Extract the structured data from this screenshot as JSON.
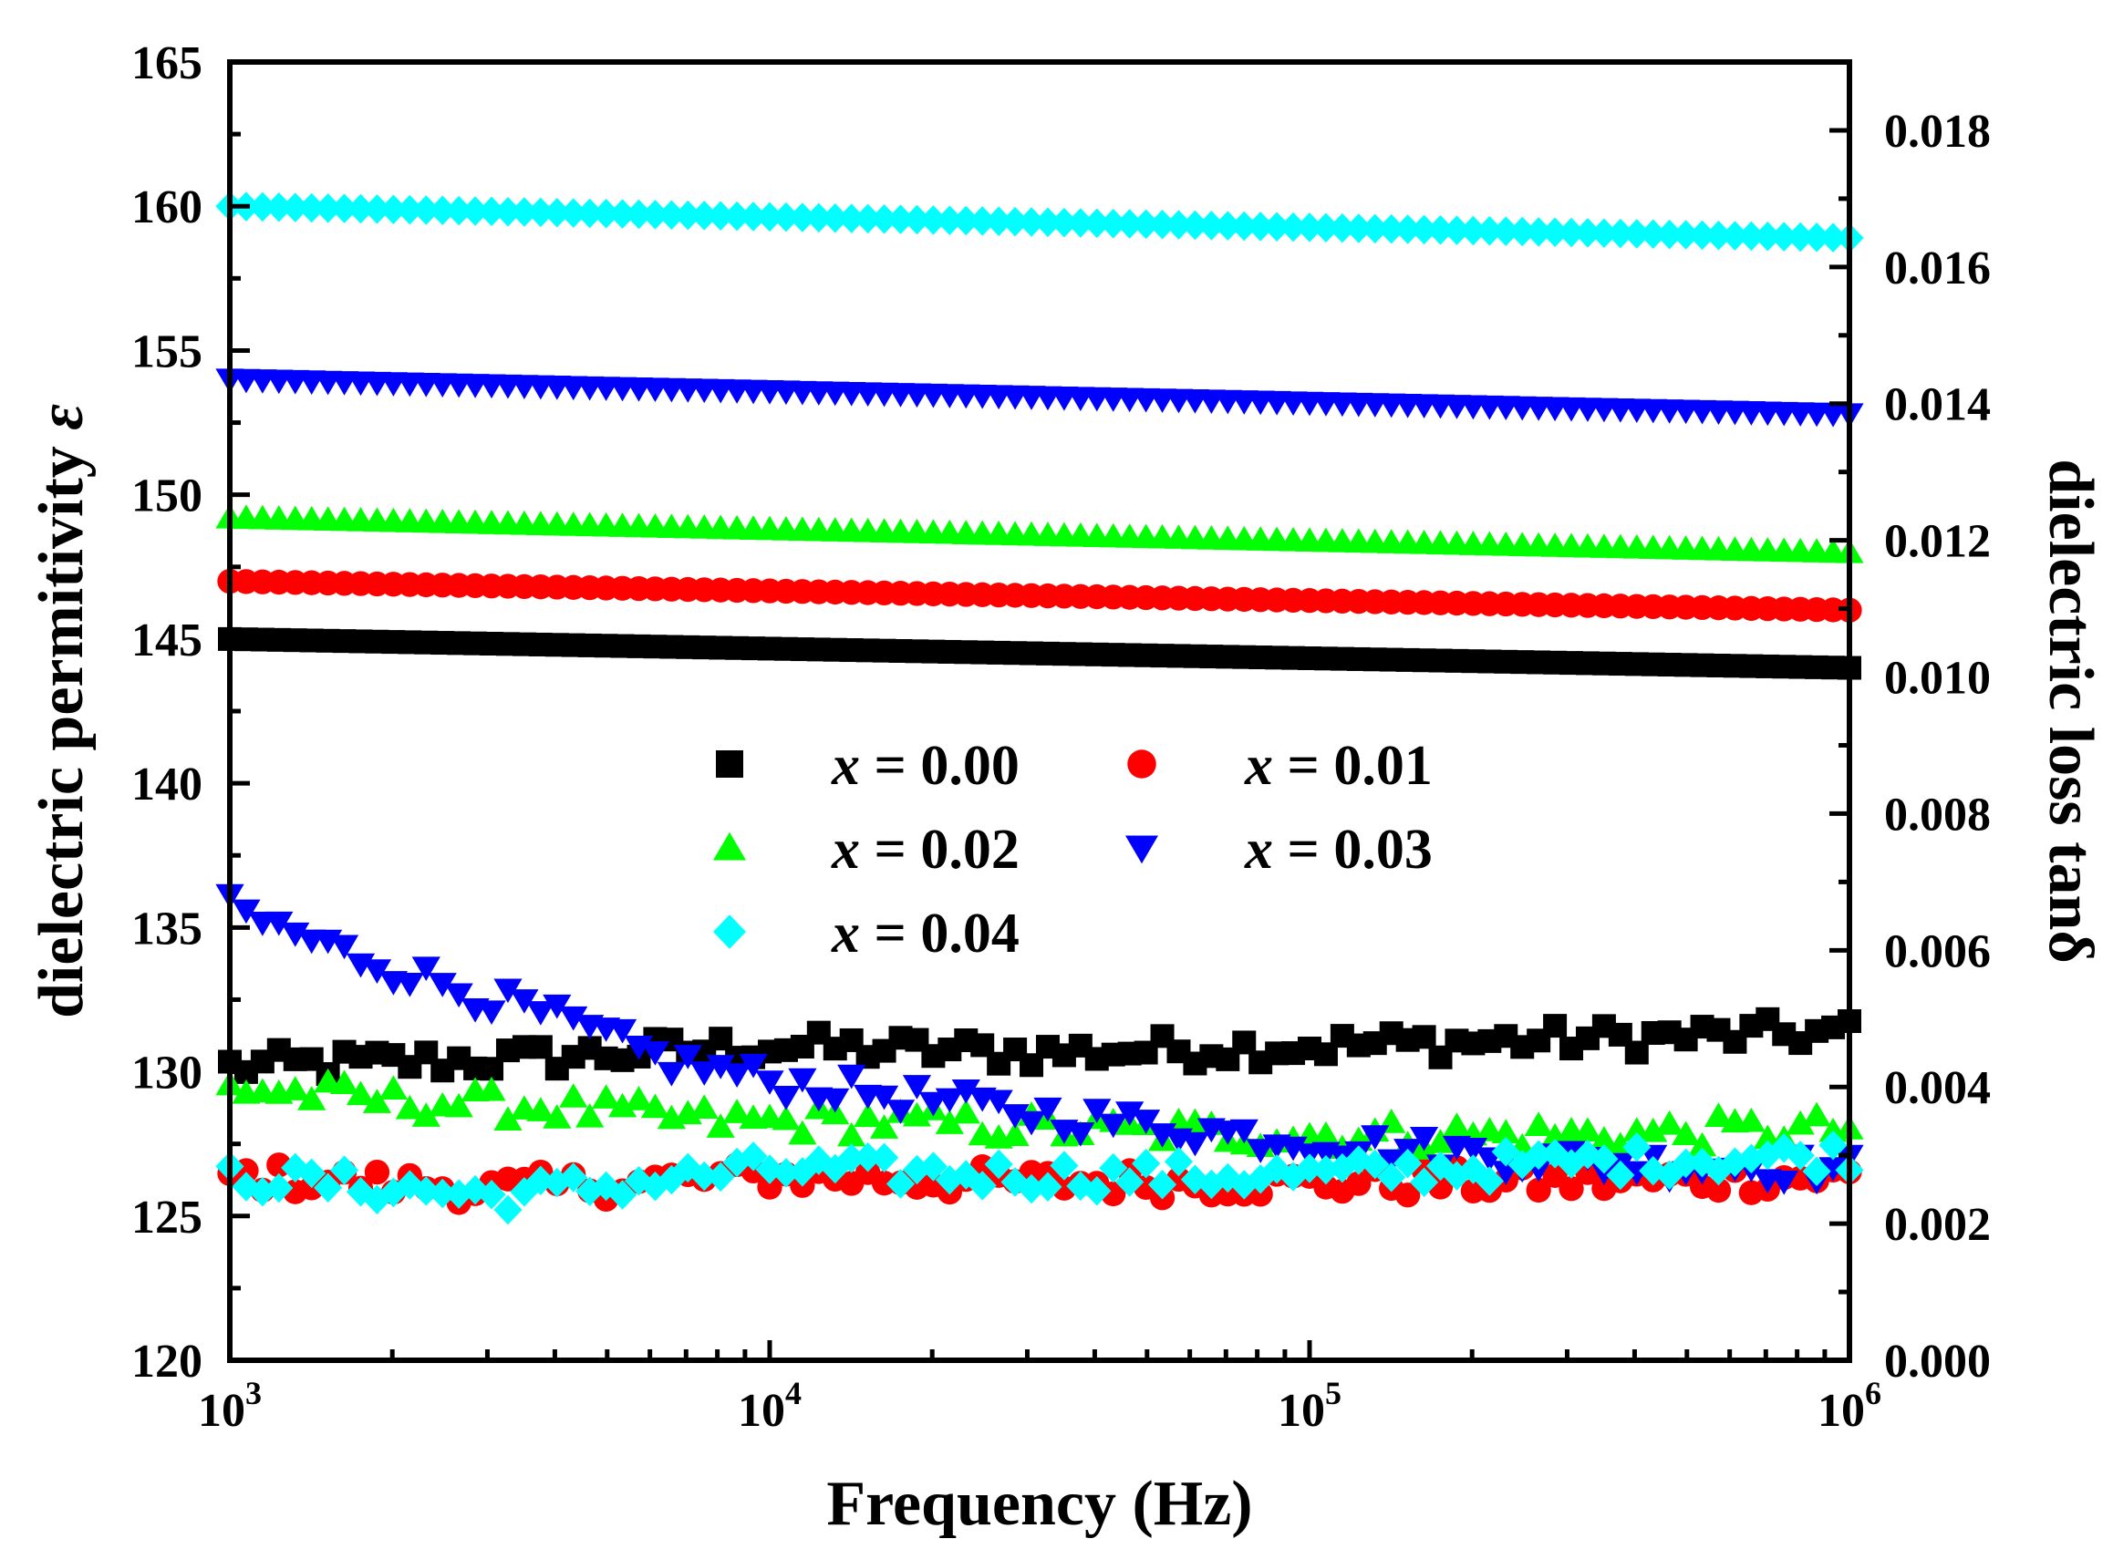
{
  "chart_data": {
    "type": "scatter",
    "xlabel": "Frequency (Hz)",
    "ylabel": "dielectric permitivity ",
    "ylabel_symbol": "ε",
    "y2label": "dielectric loss tanδ",
    "x_scale": "log",
    "xlim": [
      1000,
      1000000
    ],
    "ylim": [
      120,
      165
    ],
    "y2lim": [
      0,
      0.019
    ],
    "x_ticks": [
      {
        "base": "10",
        "exp": "3"
      },
      {
        "base": "10",
        "exp": "4"
      },
      {
        "base": "10",
        "exp": "5"
      },
      {
        "base": "10",
        "exp": "6"
      }
    ],
    "y_ticks": [
      "120",
      "125",
      "130",
      "135",
      "140",
      "145",
      "150",
      "155",
      "160",
      "165"
    ],
    "y2_ticks": [
      "0.000",
      "0.002",
      "0.004",
      "0.006",
      "0.008",
      "0.010",
      "0.012",
      "0.014",
      "0.016",
      "0.018"
    ],
    "legend_position": "center",
    "series": [
      {
        "name": "x = 0.00",
        "var": "x",
        "value": " = 0.00",
        "color": "#000000",
        "marker": "square",
        "permittivity": {
          "start": 145.0,
          "end": 144.0
        },
        "loss_profile": {
          "logf": [
            3.0,
            3.5,
            4.0,
            4.5,
            5.0,
            5.5,
            6.0
          ],
          "tan": [
            0.0043,
            0.0044,
            0.0046,
            0.0045,
            0.0046,
            0.0047,
            0.0048
          ]
        }
      },
      {
        "name": "x = 0.01",
        "var": "x",
        "value": " = 0.01",
        "color": "#ff0000",
        "marker": "circle",
        "permittivity": {
          "start": 147.0,
          "end": 146.0
        },
        "loss_profile": {
          "logf": [
            3.0,
            3.5,
            4.0,
            4.5,
            5.0,
            5.5,
            6.0
          ],
          "tan": [
            0.0027,
            0.0025,
            0.0027,
            0.0026,
            0.0026,
            0.0026,
            0.0027
          ]
        }
      },
      {
        "name": "x = 0.02",
        "var": "x",
        "value": " = 0.02",
        "color": "#00ff00",
        "marker": "triangle-up",
        "permittivity": {
          "start": 149.2,
          "end": 148.0
        },
        "loss_profile": {
          "logf": [
            3.0,
            3.3,
            3.6,
            3.9,
            4.2,
            4.5,
            5.0,
            5.5,
            6.0
          ],
          "tan": [
            0.004,
            0.0038,
            0.0037,
            0.0035,
            0.0035,
            0.0034,
            0.0033,
            0.0033,
            0.0034
          ]
        }
      },
      {
        "name": "x = 0.03",
        "var": "x",
        "value": " = 0.03",
        "color": "#0000ff",
        "marker": "triangle-down",
        "permittivity": {
          "start": 154.0,
          "end": 152.8
        },
        "loss_profile": {
          "logf": [
            3.0,
            3.2,
            3.4,
            3.6,
            3.8,
            4.0,
            4.5,
            5.0,
            5.5,
            6.0
          ],
          "tan": [
            0.0066,
            0.006,
            0.0055,
            0.005,
            0.0044,
            0.0041,
            0.0036,
            0.0032,
            0.0029,
            0.0028
          ]
        }
      },
      {
        "name": "x = 0.04",
        "var": "x",
        "value": " = 0.04",
        "color": "#00ffff",
        "marker": "diamond",
        "permittivity": {
          "start": 160.0,
          "end": 158.9
        },
        "loss_profile": {
          "logf": [
            3.0,
            3.5,
            4.0,
            4.5,
            5.0,
            5.5,
            6.0
          ],
          "tan": [
            0.0027,
            0.0024,
            0.0028,
            0.0027,
            0.0027,
            0.0029,
            0.003
          ]
        }
      }
    ]
  }
}
